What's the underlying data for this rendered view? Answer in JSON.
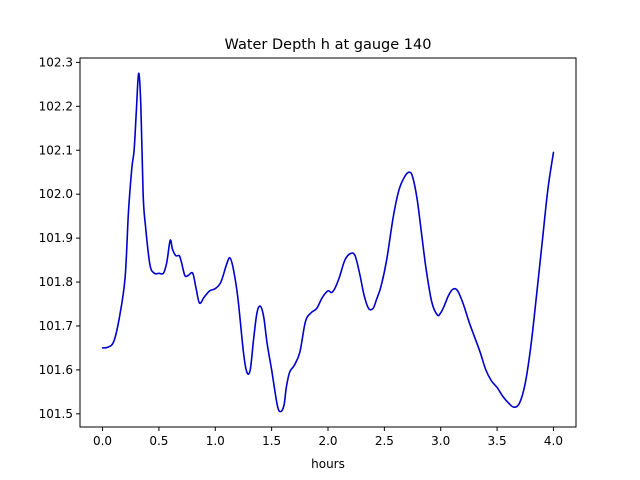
{
  "chart_data": {
    "type": "line",
    "title": "Water Depth h at gauge 140",
    "xlabel": "hours",
    "ylabel": "",
    "xlim": [
      -0.2,
      4.2
    ],
    "ylim": [
      101.47,
      102.31
    ],
    "x_ticks": [
      0.0,
      0.5,
      1.0,
      1.5,
      2.0,
      2.5,
      3.0,
      3.5,
      4.0
    ],
    "x_tick_labels": [
      "0.0",
      "0.5",
      "1.0",
      "1.5",
      "2.0",
      "2.5",
      "3.0",
      "3.5",
      "4.0"
    ],
    "y_ticks": [
      101.5,
      101.6,
      101.7,
      101.8,
      101.9,
      102.0,
      102.1,
      102.2,
      102.3
    ],
    "y_tick_labels": [
      "101.5",
      "101.6",
      "101.7",
      "101.8",
      "101.9",
      "102.0",
      "102.1",
      "102.2",
      "102.3"
    ],
    "grid": false,
    "legend": "none",
    "series": [
      {
        "color": "#0000cc",
        "x": [
          0.0,
          0.05,
          0.1,
          0.15,
          0.2,
          0.23,
          0.26,
          0.28,
          0.3,
          0.32,
          0.34,
          0.36,
          0.38,
          0.42,
          0.46,
          0.5,
          0.54,
          0.57,
          0.6,
          0.62,
          0.65,
          0.68,
          0.7,
          0.73,
          0.76,
          0.8,
          0.83,
          0.86,
          0.9,
          0.95,
          1.0,
          1.05,
          1.1,
          1.13,
          1.16,
          1.2,
          1.25,
          1.28,
          1.31,
          1.34,
          1.37,
          1.4,
          1.43,
          1.46,
          1.5,
          1.55,
          1.58,
          1.61,
          1.63,
          1.66,
          1.7,
          1.75,
          1.8,
          1.85,
          1.9,
          1.95,
          2.0,
          2.03,
          2.06,
          2.1,
          2.15,
          2.2,
          2.24,
          2.28,
          2.32,
          2.36,
          2.4,
          2.43,
          2.47,
          2.52,
          2.58,
          2.63,
          2.68,
          2.72,
          2.75,
          2.79,
          2.83,
          2.87,
          2.92,
          2.97,
          3.0,
          3.03,
          3.07,
          3.11,
          3.15,
          3.2,
          3.25,
          3.3,
          3.35,
          3.4,
          3.45,
          3.5,
          3.55,
          3.6,
          3.65,
          3.7,
          3.75,
          3.8,
          3.85,
          3.9,
          3.95,
          4.0
        ],
        "values": [
          101.65,
          101.652,
          101.665,
          101.72,
          101.81,
          101.96,
          102.06,
          102.1,
          102.19,
          102.275,
          102.2,
          102.0,
          101.93,
          101.84,
          101.82,
          101.82,
          101.82,
          101.845,
          101.895,
          101.875,
          101.86,
          101.86,
          101.845,
          101.815,
          101.815,
          101.82,
          101.785,
          101.752,
          101.765,
          101.78,
          101.785,
          101.8,
          101.84,
          101.855,
          101.83,
          101.765,
          101.64,
          101.595,
          101.6,
          101.67,
          101.73,
          101.745,
          101.72,
          101.66,
          101.6,
          101.52,
          101.505,
          101.52,
          101.56,
          101.595,
          101.61,
          101.64,
          101.71,
          101.73,
          101.74,
          101.765,
          101.78,
          101.776,
          101.785,
          101.81,
          101.85,
          101.865,
          101.86,
          101.82,
          101.77,
          101.74,
          101.74,
          101.76,
          101.79,
          101.85,
          101.95,
          102.01,
          102.04,
          102.05,
          102.04,
          101.99,
          101.91,
          101.83,
          101.755,
          101.725,
          101.73,
          101.745,
          101.77,
          101.784,
          101.78,
          101.75,
          101.71,
          101.675,
          101.64,
          101.6,
          101.575,
          101.56,
          101.54,
          101.525,
          101.515,
          101.525,
          101.57,
          101.655,
          101.77,
          101.89,
          102.01,
          102.095
        ]
      }
    ]
  }
}
